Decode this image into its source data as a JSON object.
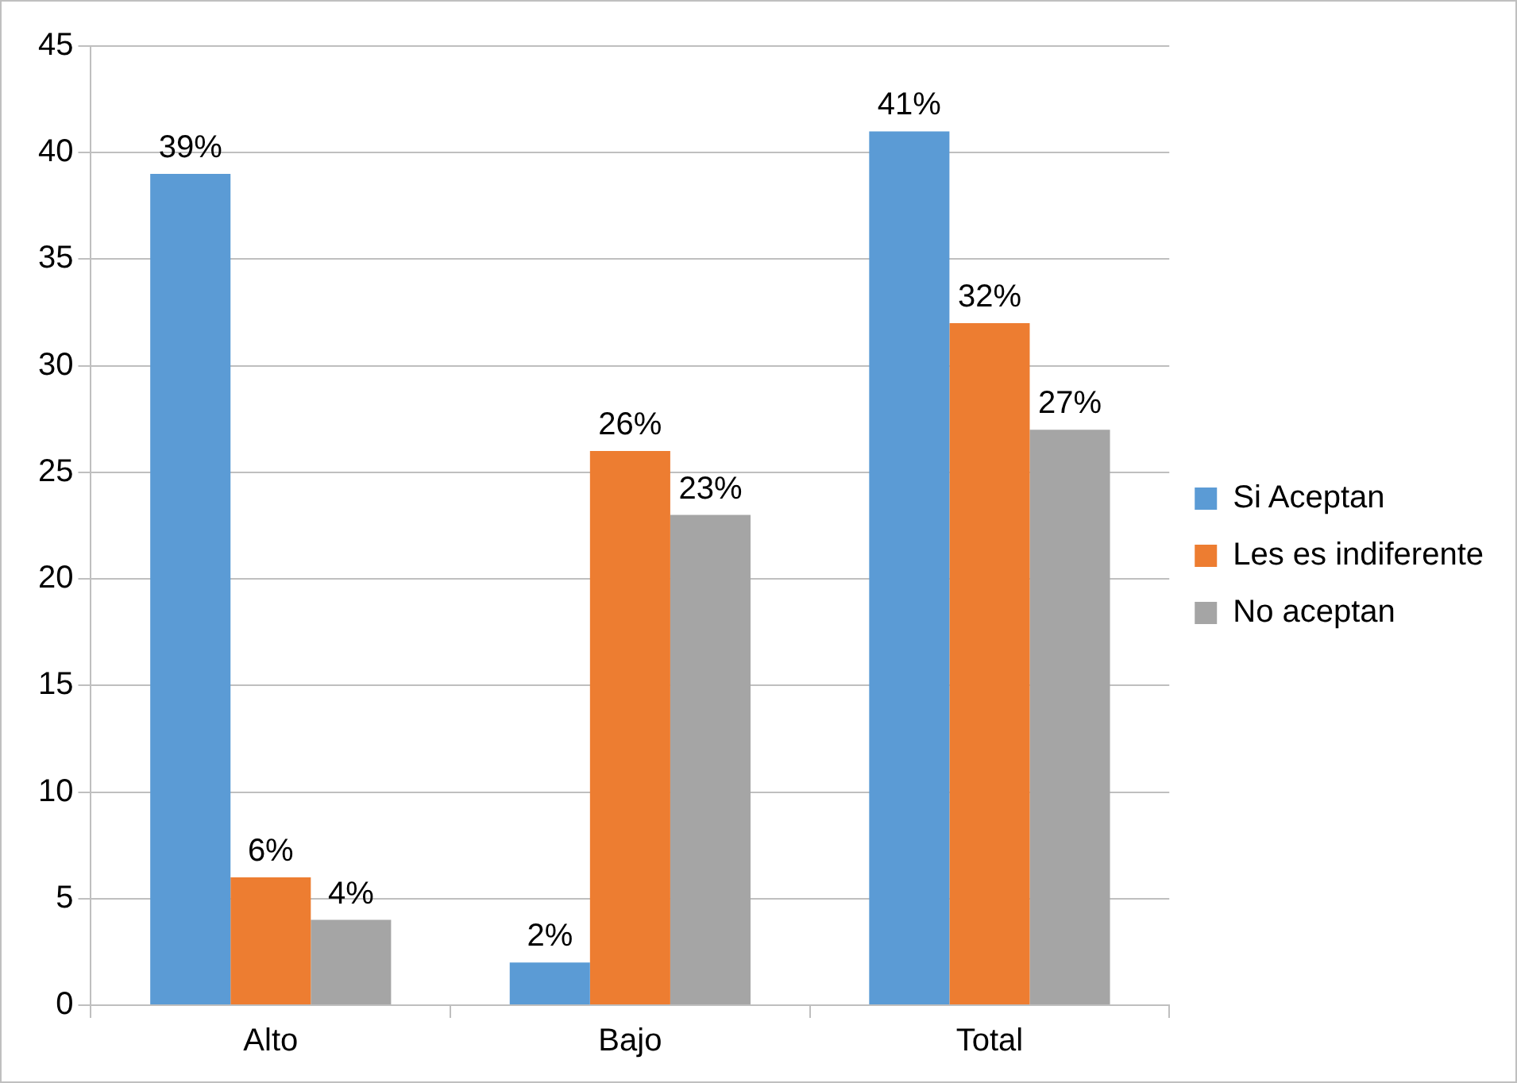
{
  "chart_data": {
    "type": "bar",
    "categories": [
      "Alto",
      "Bajo",
      "Total"
    ],
    "series": [
      {
        "name": "Si Aceptan",
        "color": "#5b9bd5",
        "values": [
          39,
          2,
          41
        ],
        "value_labels": [
          "39%",
          "2%",
          "41%"
        ]
      },
      {
        "name": "Les es indiferente",
        "color": "#ed7d31",
        "values": [
          6,
          26,
          32
        ],
        "value_labels": [
          "6%",
          "26%",
          "32%"
        ]
      },
      {
        "name": "No aceptan",
        "color": "#a5a5a5",
        "values": [
          4,
          23,
          27
        ],
        "value_labels": [
          "4%",
          "23%",
          "27%"
        ]
      }
    ],
    "ylim": [
      0,
      45
    ],
    "yticks": [
      0,
      5,
      10,
      15,
      20,
      25,
      30,
      35,
      40,
      45
    ],
    "grid": "y",
    "legend": "right"
  }
}
